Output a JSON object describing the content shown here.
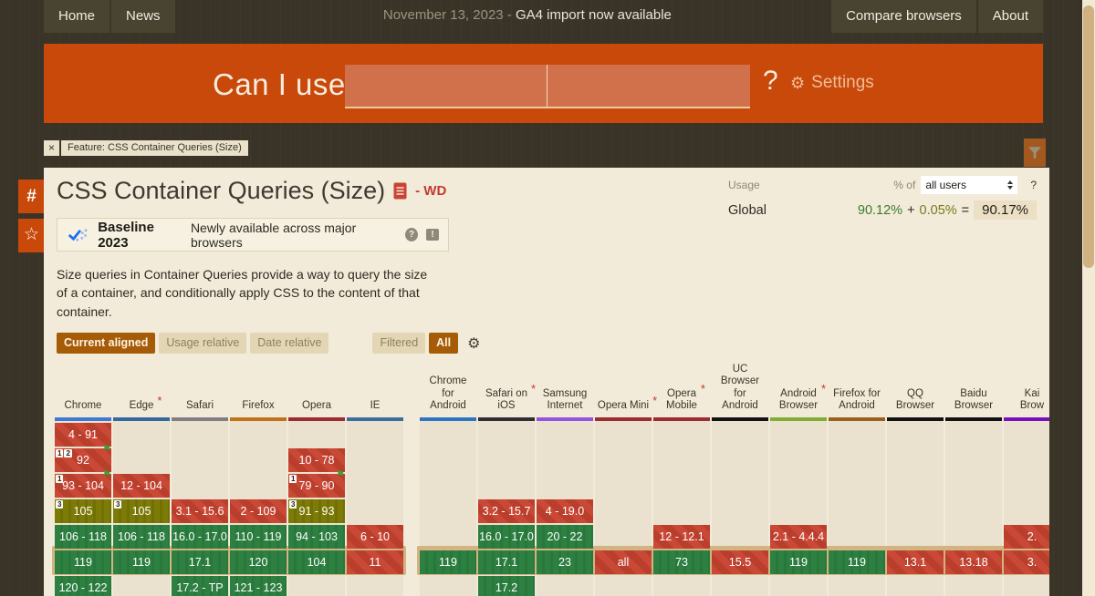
{
  "nav": {
    "items_left": [
      "Home",
      "News"
    ],
    "date": "November 13, 2023 - ",
    "announcement": "GA4 import now available",
    "items_right": [
      "Compare browsers",
      "About"
    ]
  },
  "banner": {
    "logo": "Can I use",
    "search_value_left": "",
    "search_value_right": "",
    "help": "?",
    "settings_gear": "⚙",
    "settings": "Settings"
  },
  "filter_bar": {
    "close": "×",
    "tag": "Feature: CSS Container Queries (Size)"
  },
  "sidebar": {
    "hash": "#",
    "star": "☆"
  },
  "feature": {
    "title": "CSS Container Queries (Size)",
    "spec_status": "- WD",
    "usage": {
      "label": "Usage",
      "percent_of": "% of",
      "audience": "all users",
      "help": "?",
      "region": "Global",
      "full": "90.12%",
      "plus": "+",
      "partial": "0.05%",
      "equals": "=",
      "total": "90.17%"
    },
    "baseline": {
      "title": "Baseline 2023",
      "subtitle": "Newly available across major browsers",
      "help": "?",
      "feedback": "!"
    },
    "description": "Size queries in Container Queries provide a way to query the size of a container, and conditionally apply CSS to the content of that container.",
    "view_buttons": [
      {
        "label": "Current aligned",
        "active": true
      },
      {
        "label": "Usage relative",
        "active": false
      },
      {
        "label": "Date relative",
        "active": false
      }
    ],
    "filter_buttons": [
      {
        "label": "Filtered",
        "active": false
      },
      {
        "label": "All",
        "active": true
      }
    ]
  },
  "support_table": {
    "legend_colors": {
      "supported": "#2d8041",
      "not_supported": "#c94836",
      "partial": "#7d7b08",
      "current_row_border": "#d2b483"
    },
    "current_row": 6,
    "browsers": [
      {
        "name": "Chrome",
        "group": "desktop",
        "bar": "#3e79d4",
        "asterisk": false,
        "cells": [
          {
            "row": 1,
            "text": "4 - 91",
            "type": "n"
          },
          {
            "row": 2,
            "text": "92",
            "type": "n",
            "badges": [
              "1",
              "2"
            ],
            "flag": true
          },
          {
            "row": 3,
            "text": "93 - 104",
            "type": "n",
            "badges": [
              "1"
            ],
            "flag": true
          },
          {
            "row": 4,
            "text": "105",
            "type": "a",
            "badges": [
              "3"
            ]
          },
          {
            "row": 5,
            "text": "106 - 118",
            "type": "y"
          },
          {
            "row": 6,
            "text": "119",
            "type": "y"
          },
          {
            "row": 7,
            "text": "120 - 122",
            "type": "y"
          }
        ]
      },
      {
        "name": "Edge",
        "group": "desktop",
        "bar": "#35689f",
        "asterisk": true,
        "cells": [
          {
            "row": 3,
            "text": "12 - 104",
            "type": "n"
          },
          {
            "row": 4,
            "text": "105",
            "type": "a",
            "badges": [
              "3"
            ]
          },
          {
            "row": 5,
            "text": "106 - 118",
            "type": "y"
          },
          {
            "row": 6,
            "text": "119",
            "type": "y"
          }
        ]
      },
      {
        "name": "Safari",
        "group": "desktop",
        "bar": "#7f7f7f",
        "asterisk": false,
        "cells": [
          {
            "row": 4,
            "text": "3.1 - 15.6",
            "type": "n"
          },
          {
            "row": 5,
            "text": "16.0 - 17.0",
            "type": "y"
          },
          {
            "row": 6,
            "text": "17.1",
            "type": "y"
          },
          {
            "row": 7,
            "text": "17.2 - TP",
            "type": "y"
          }
        ]
      },
      {
        "name": "Firefox",
        "group": "desktop",
        "bar": "#bf7219",
        "asterisk": false,
        "cells": [
          {
            "row": 4,
            "text": "2 - 109",
            "type": "n"
          },
          {
            "row": 5,
            "text": "110 - 119",
            "type": "y"
          },
          {
            "row": 6,
            "text": "120",
            "type": "y"
          },
          {
            "row": 7,
            "text": "121 - 123",
            "type": "y"
          }
        ]
      },
      {
        "name": "Opera",
        "group": "desktop",
        "bar": "#9c2b32",
        "asterisk": false,
        "cells": [
          {
            "row": 2,
            "text": "10 - 78",
            "type": "n"
          },
          {
            "row": 3,
            "text": "79 - 90",
            "type": "n",
            "badges": [
              "1"
            ],
            "flag": true
          },
          {
            "row": 4,
            "text": "91 - 93",
            "type": "a",
            "badges": [
              "3"
            ]
          },
          {
            "row": 5,
            "text": "94 - 103",
            "type": "y"
          },
          {
            "row": 6,
            "text": "104",
            "type": "y"
          }
        ]
      },
      {
        "name": "IE",
        "group": "desktop",
        "bar": "#3c6d9d",
        "asterisk": false,
        "cells": [
          {
            "row": 5,
            "text": "6 - 10",
            "type": "n"
          },
          {
            "row": 6,
            "text": "11",
            "type": "n"
          }
        ]
      },
      {
        "name": "Chrome\nfor\nAndroid",
        "group": "mobile",
        "bar": "#2f74c4",
        "asterisk": false,
        "cells": [
          {
            "row": 6,
            "text": "119",
            "type": "y"
          }
        ]
      },
      {
        "name": "Safari on\niOS",
        "group": "mobile",
        "bar": "#2f2f2f",
        "asterisk": true,
        "cells": [
          {
            "row": 4,
            "text": "3.2 - 15.7",
            "type": "n"
          },
          {
            "row": 5,
            "text": "16.0 - 17.0",
            "type": "y"
          },
          {
            "row": 6,
            "text": "17.1",
            "type": "y"
          },
          {
            "row": 7,
            "text": "17.2",
            "type": "y"
          }
        ]
      },
      {
        "name": "Samsung\nInternet",
        "group": "mobile",
        "bar": "#9153e0",
        "asterisk": false,
        "cells": [
          {
            "row": 4,
            "text": "4 - 19.0",
            "type": "n"
          },
          {
            "row": 5,
            "text": "20 - 22",
            "type": "y"
          },
          {
            "row": 6,
            "text": "23",
            "type": "y"
          }
        ]
      },
      {
        "name": "Opera Mini",
        "group": "mobile",
        "bar": "#9c2b32",
        "asterisk": true,
        "cells": [
          {
            "row": 6,
            "text": "all",
            "type": "n"
          }
        ]
      },
      {
        "name": "Opera\nMobile",
        "group": "mobile",
        "bar": "#9c2b32",
        "asterisk": true,
        "cells": [
          {
            "row": 5,
            "text": "12 - 12.1",
            "type": "n"
          },
          {
            "row": 6,
            "text": "73",
            "type": "y"
          }
        ]
      },
      {
        "name": "UC\nBrowser\nfor\nAndroid",
        "group": "mobile",
        "bar": "#121212",
        "asterisk": false,
        "cells": [
          {
            "row": 6,
            "text": "15.5",
            "type": "n"
          }
        ]
      },
      {
        "name": "Android\nBrowser",
        "group": "mobile",
        "bar": "#7fad35",
        "asterisk": true,
        "cells": [
          {
            "row": 5,
            "text": "2.1 - 4.4.4",
            "type": "n"
          },
          {
            "row": 6,
            "text": "119",
            "type": "y"
          }
        ]
      },
      {
        "name": "Firefox for\nAndroid",
        "group": "mobile",
        "bar": "#99601f",
        "asterisk": false,
        "cells": [
          {
            "row": 6,
            "text": "119",
            "type": "y"
          }
        ]
      },
      {
        "name": "QQ\nBrowser",
        "group": "mobile",
        "bar": "#121212",
        "asterisk": false,
        "cells": [
          {
            "row": 6,
            "text": "13.1",
            "type": "n"
          }
        ]
      },
      {
        "name": "Baidu\nBrowser",
        "group": "mobile",
        "bar": "#121212",
        "asterisk": false,
        "cells": [
          {
            "row": 6,
            "text": "13.18",
            "type": "n"
          }
        ]
      },
      {
        "name": "Kai\nBrow",
        "group": "mobile",
        "bar": "#7a10bd",
        "asterisk": false,
        "cells": [
          {
            "row": 5,
            "text": "2.",
            "type": "n"
          },
          {
            "row": 6,
            "text": "3.",
            "type": "n"
          }
        ]
      }
    ]
  }
}
